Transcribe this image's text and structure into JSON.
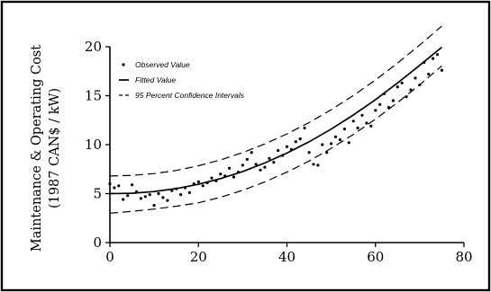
{
  "chart_data": {
    "type": "scatter",
    "title": "",
    "xlabel": "",
    "ylabel_line1": "Maintenance & Operating Cost",
    "ylabel_line2": "(1987 CAN$ / kW)",
    "xlim": [
      0,
      80
    ],
    "ylim": [
      0,
      20
    ],
    "x_ticks": [
      0,
      20,
      40,
      60,
      80
    ],
    "x_tick_labels": [
      "0",
      "20",
      "40",
      "60",
      "80"
    ],
    "y_ticks": [
      0,
      5,
      10,
      15,
      20
    ],
    "y_tick_labels": [
      "0",
      "5",
      "10",
      "15",
      "20"
    ],
    "grid": false,
    "legend_position": "top-left",
    "legend": [
      {
        "key": "observed",
        "label": "Observed Value"
      },
      {
        "key": "fitted",
        "label": "Fitted Value"
      },
      {
        "key": "ci",
        "label": "95 Percent Confidence Intervals"
      }
    ],
    "series": [
      {
        "name": "Observed Value",
        "kind": "points",
        "x": [
          0,
          1,
          2,
          3,
          4,
          5,
          6,
          7,
          8,
          9,
          10,
          11,
          12,
          13,
          14,
          15,
          16,
          17,
          18,
          19,
          20,
          21,
          22,
          23,
          24,
          25,
          26,
          27,
          28,
          29,
          30,
          31,
          32,
          33,
          34,
          35,
          36,
          37,
          38,
          39,
          40,
          41,
          42,
          43,
          44,
          45,
          46,
          47,
          48,
          49,
          50,
          51,
          52,
          53,
          54,
          55,
          56,
          57,
          58,
          59,
          60,
          61,
          62,
          63,
          64,
          65,
          66,
          67,
          68,
          69,
          70,
          71,
          72,
          73,
          74,
          75
        ],
        "y": [
          6.0,
          5.6,
          5.8,
          4.4,
          4.8,
          5.9,
          5.2,
          4.5,
          4.7,
          4.9,
          3.8,
          5.0,
          4.6,
          4.3,
          5.3,
          5.5,
          4.9,
          5.6,
          5.1,
          6.0,
          6.2,
          5.8,
          6.1,
          6.6,
          6.3,
          7.0,
          6.8,
          7.6,
          6.7,
          7.2,
          7.9,
          8.5,
          9.2,
          8.0,
          7.4,
          7.7,
          8.6,
          8.2,
          9.4,
          8.9,
          9.8,
          9.5,
          10.3,
          10.6,
          11.7,
          9.2,
          8.0,
          7.9,
          10.0,
          9.2,
          10.1,
          10.8,
          10.5,
          11.6,
          10.2,
          12.4,
          11.7,
          13.0,
          12.2,
          11.9,
          13.5,
          14.1,
          15.2,
          13.8,
          14.5,
          15.9,
          16.3,
          14.9,
          15.6,
          16.8,
          16.1,
          18.4,
          17.2,
          18.8,
          19.2,
          17.6
        ]
      },
      {
        "name": "Fitted Value",
        "kind": "line",
        "x": [
          0,
          5,
          10,
          15,
          20,
          25,
          30,
          35,
          40,
          45,
          50,
          55,
          60,
          65,
          70,
          75
        ],
        "y": [
          5.0,
          5.04,
          5.21,
          5.51,
          5.95,
          6.53,
          7.26,
          8.13,
          9.14,
          10.29,
          11.59,
          13.03,
          14.6,
          16.3,
          18.1,
          19.95
        ]
      },
      {
        "name": "95 Percent Confidence Intervals",
        "kind": "dashed",
        "x": [
          0,
          5,
          10,
          15,
          20,
          25,
          30,
          35,
          40,
          45,
          50,
          55,
          60,
          65,
          70,
          75
        ],
        "y": [
          6.8,
          6.86,
          7.05,
          7.37,
          7.84,
          8.44,
          9.19,
          10.07,
          11.1,
          12.26,
          13.57,
          15.02,
          16.61,
          18.33,
          20.17,
          22.1
        ]
      },
      {
        "name": "",
        "kind": "dashed",
        "x": [
          0,
          5,
          10,
          15,
          20,
          25,
          30,
          35,
          40,
          45,
          50,
          55,
          60,
          65,
          70,
          75
        ],
        "y": [
          3.0,
          3.19,
          3.42,
          3.72,
          4.06,
          4.62,
          5.34,
          6.2,
          7.19,
          8.33,
          9.62,
          11.05,
          12.61,
          14.3,
          16.12,
          18.04
        ]
      }
    ]
  }
}
